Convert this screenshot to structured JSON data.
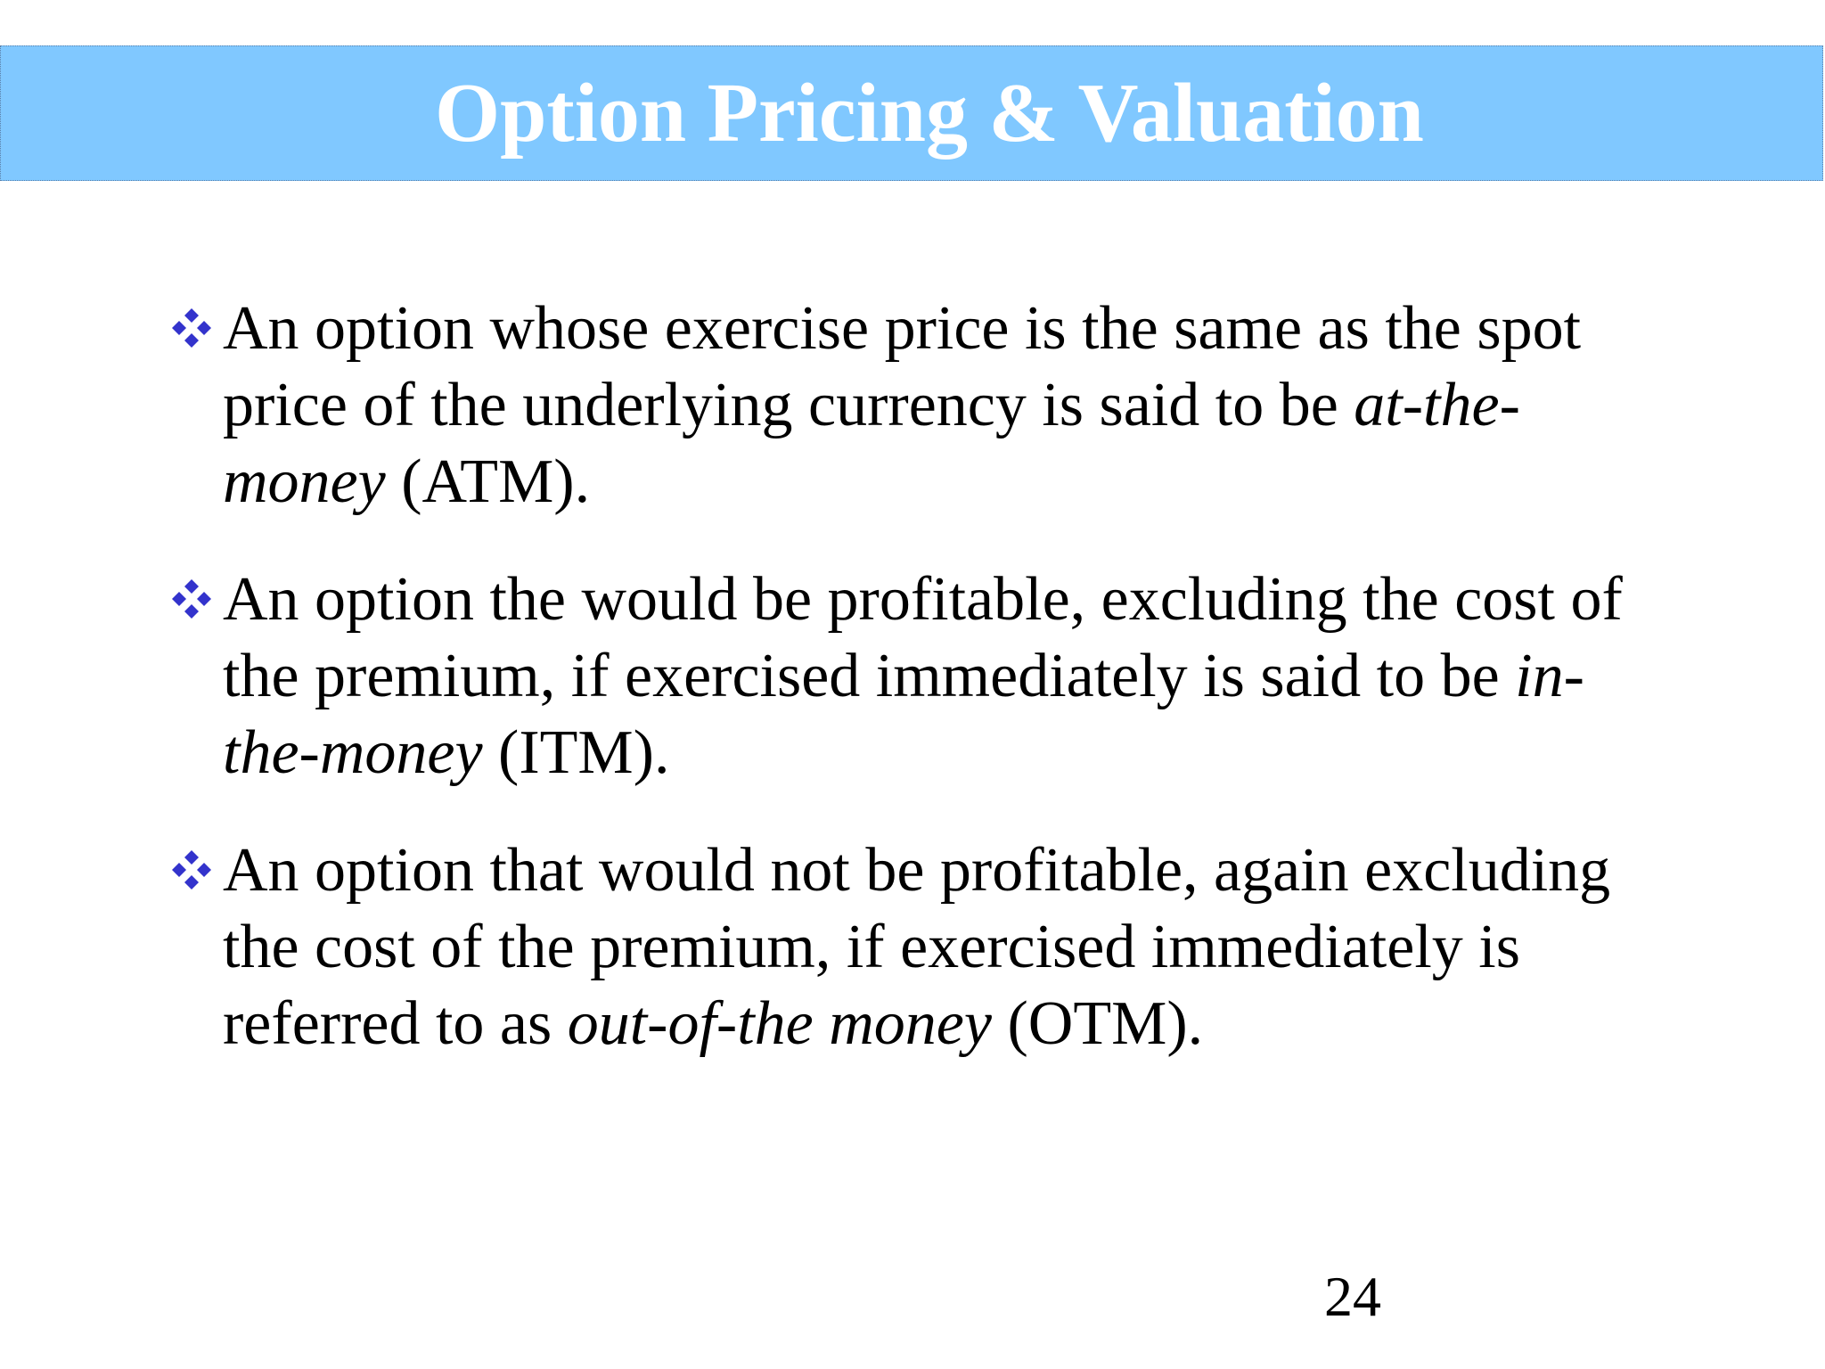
{
  "slide": {
    "title": "Option Pricing & Valuation",
    "title_bar_color": "#80c8ff",
    "bullet_icon_color": "#3333cc",
    "bullets": [
      {
        "before": "An option whose exercise price is the same as the spot price of the underlying currency is said to be ",
        "term": "at-the-money",
        "after": " (ATM)."
      },
      {
        "before": "An option the would be profitable, excluding the cost of the premium, if exercised immediately is said to be ",
        "term": "in-the-money",
        "after": " (ITM)."
      },
      {
        "before": "An option that would not be profitable, again excluding the cost of the premium, if exercised immediately is referred to as ",
        "term": "out-of-the money",
        "after": " (OTM)."
      }
    ],
    "page_number": "24"
  }
}
